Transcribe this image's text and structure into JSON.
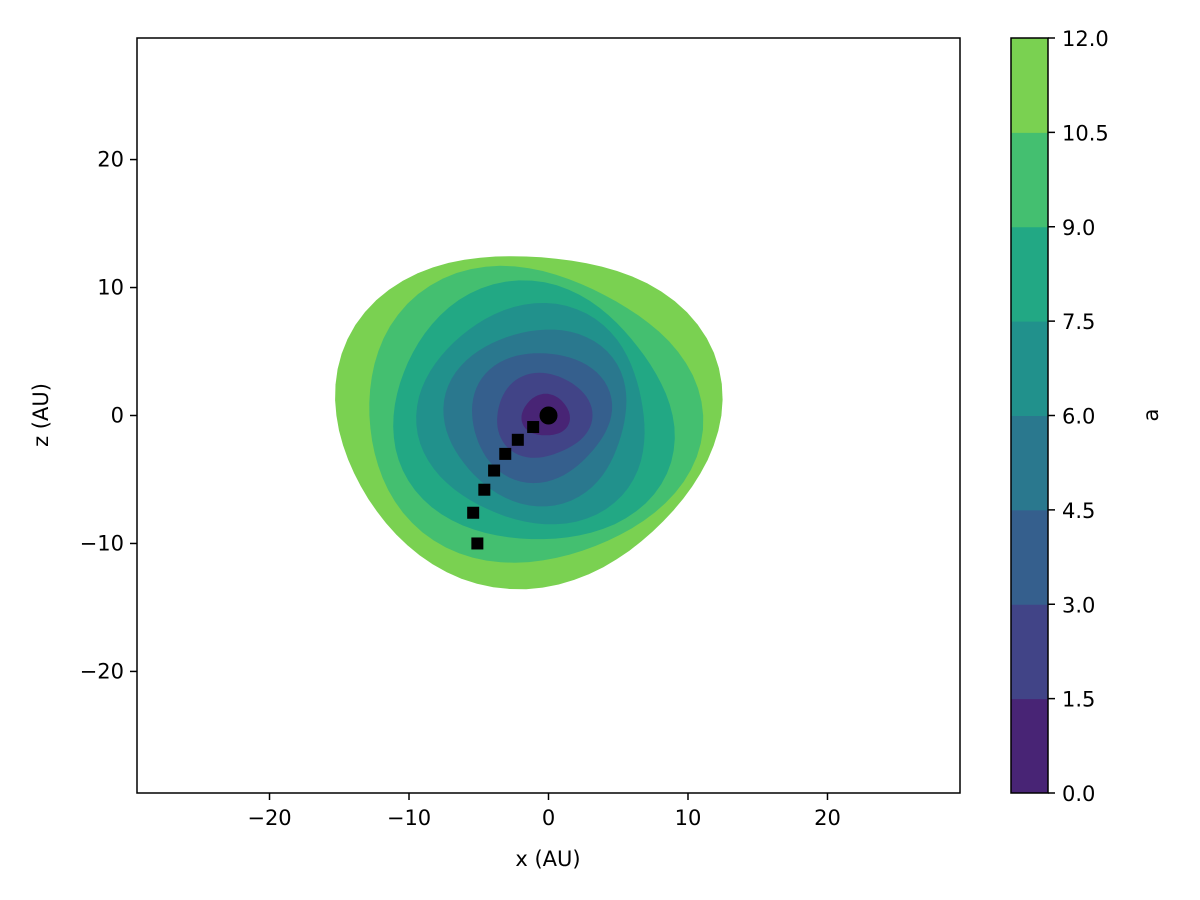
{
  "chart_data": {
    "type": "contour",
    "xlabel": "x (AU)",
    "ylabel": "z (AU)",
    "xlim": [
      -29.5,
      29.5
    ],
    "ylim": [
      -29.5,
      29.5
    ],
    "x_ticks": [
      -20,
      -10,
      0,
      10,
      20
    ],
    "y_ticks": [
      -20,
      -10,
      0,
      10,
      20
    ],
    "x_tick_labels": [
      "−20",
      "−10",
      "0",
      "10",
      "20"
    ],
    "y_tick_labels": [
      "−20",
      "−10",
      "0",
      "10",
      "20"
    ],
    "grid": false,
    "colorbar": {
      "label": "a",
      "levels": [
        0.0,
        1.5,
        3.0,
        4.5,
        6.0,
        7.5,
        9.0,
        10.5,
        12.0
      ],
      "tick_labels": [
        "0.0",
        "1.5",
        "3.0",
        "4.5",
        "6.0",
        "7.5",
        "9.0",
        "10.5",
        "12.0"
      ],
      "colors": [
        "#482475",
        "#414487",
        "#355f8d",
        "#2a788e",
        "#21918c",
        "#22a884",
        "#44bf70",
        "#7ad151",
        "#d8e219"
      ]
    },
    "field_extent_radius": 13.4,
    "center_marker": {
      "x": 0.0,
      "z": 0.0,
      "color": "#000000",
      "shape": "circle"
    },
    "track_points": [
      {
        "x": -1.1,
        "z": -0.9
      },
      {
        "x": -2.2,
        "z": -1.9
      },
      {
        "x": -3.1,
        "z": -3.0
      },
      {
        "x": -3.9,
        "z": -4.3
      },
      {
        "x": -4.6,
        "z": -5.8
      },
      {
        "x": -5.4,
        "z": -7.6
      },
      {
        "x": -5.1,
        "z": -10.0
      }
    ]
  }
}
